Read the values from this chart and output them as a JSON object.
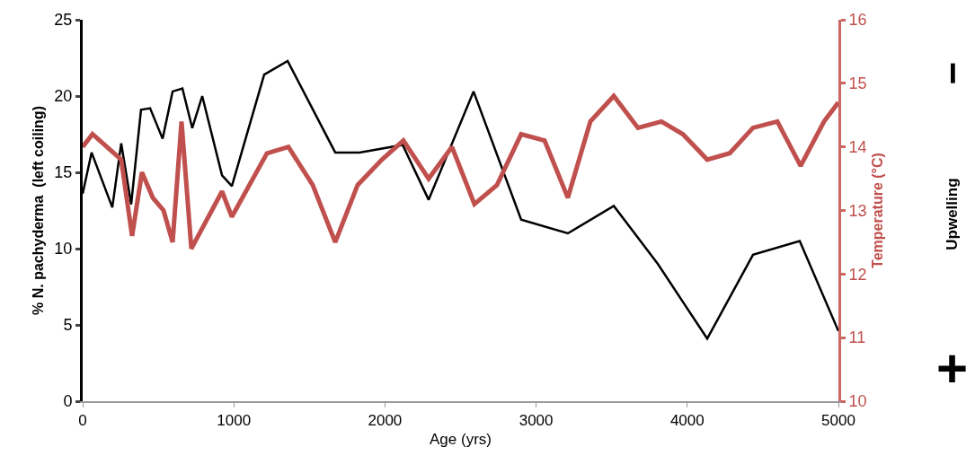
{
  "chart_data": {
    "type": "line",
    "xlabel": "Age (yrs)",
    "ylabel": "% N. pachyderma  (left coiling)",
    "y2label": "Temperature (°C)",
    "xlim": [
      0,
      5000
    ],
    "xticks": [
      0,
      1000,
      2000,
      3000,
      4000,
      5000
    ],
    "ylim": [
      0,
      25
    ],
    "yticks": [
      0,
      5,
      10,
      15,
      20,
      25
    ],
    "y2lim": [
      10,
      16
    ],
    "y2ticks": [
      10,
      11,
      12,
      13,
      14,
      15,
      16
    ],
    "marker": "none",
    "line_style": "solid",
    "annotations": [
      "−",
      "Upwelling",
      "+"
    ],
    "series": [
      {
        "color": "#000000",
        "x": [
          0,
          59,
          196,
          255,
          321,
          386,
          446,
          529,
          595,
          660,
          725,
          791,
          922,
          987,
          1201,
          1356,
          1671,
          1831,
          2117,
          2289,
          2586,
          2901,
          3210,
          3514,
          3805,
          4132,
          4435,
          4744,
          5000
        ],
        "values": [
          13.6,
          16.3,
          12.7,
          16.9,
          12.9,
          19.1,
          19.2,
          17.2,
          20.3,
          20.5,
          17.9,
          20.0,
          14.8,
          14.1,
          21.4,
          22.3,
          16.3,
          16.3,
          16.8,
          13.2,
          20.3,
          11.9,
          11.0,
          12.8,
          9.0,
          4.1,
          9.6,
          10.5,
          4.6
        ]
      },
      {
        "color": "#c0504d",
        "axis": "y2",
        "x": [
          0,
          65,
          255,
          327,
          392,
          464,
          535,
          595,
          654,
          719,
          922,
          987,
          1219,
          1361,
          1522,
          1671,
          1819,
          1980,
          2122,
          2289,
          2443,
          2592,
          2741,
          2901,
          3056,
          3210,
          3359,
          3514,
          3674,
          3829,
          3971,
          4132,
          4281,
          4435,
          4596,
          4750,
          4905,
          5000
        ],
        "values": [
          14.0,
          14.2,
          13.8,
          12.6,
          13.6,
          13.2,
          13.0,
          12.5,
          14.4,
          12.4,
          13.3,
          12.9,
          13.9,
          14.0,
          13.4,
          12.5,
          13.4,
          13.8,
          14.1,
          13.5,
          14.0,
          13.1,
          13.4,
          14.2,
          14.1,
          13.2,
          14.4,
          14.8,
          14.3,
          14.4,
          14.2,
          13.8,
          13.9,
          14.3,
          14.4,
          13.7,
          14.4,
          14.7
        ]
      }
    ]
  }
}
